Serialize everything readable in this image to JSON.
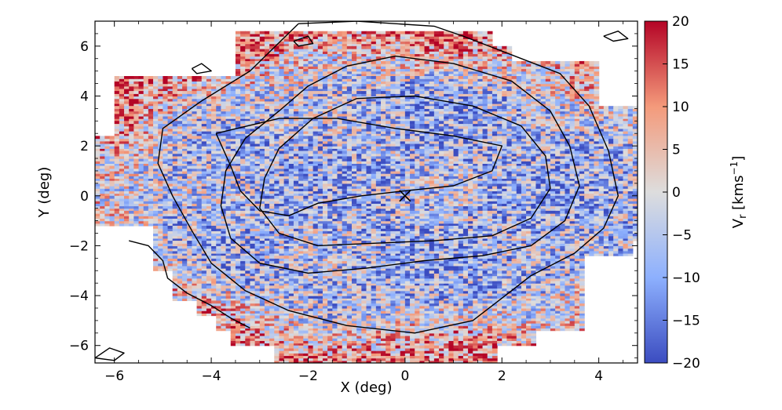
{
  "chart_data": {
    "type": "heatmap",
    "title": "",
    "xlabel": "X (deg)",
    "ylabel": "Y (deg)",
    "xlim": [
      -6.4,
      4.8
    ],
    "ylim": [
      -6.7,
      7.0
    ],
    "xticks": [
      -6,
      -4,
      -2,
      0,
      2,
      4
    ],
    "yticks": [
      -6,
      -4,
      -2,
      0,
      2,
      4,
      6
    ],
    "x_tick_labels": [
      "−6",
      "−4",
      "−2",
      "0",
      "2",
      "4"
    ],
    "y_tick_labels": [
      "−6",
      "−4",
      "−2",
      "0",
      "2",
      "4",
      "6"
    ],
    "colorbar": {
      "label_main": "V",
      "label_sub": "r",
      "label_unit_open": " [kms",
      "label_unit_exp": "−1",
      "label_unit_close": "]",
      "range": [
        -20,
        20
      ],
      "ticks": [
        -20,
        -15,
        -10,
        -5,
        0,
        5,
        10,
        15,
        20
      ],
      "tick_labels": [
        "−20",
        "−15",
        "−10",
        "−5",
        "0",
        "5",
        "10",
        "15",
        "20"
      ],
      "cmap": "coolwarm",
      "colors": [
        "#3b4cc0",
        "#8db0fe",
        "#dddddd",
        "#f49a7b",
        "#b40426"
      ]
    },
    "center_marker": {
      "x": 0,
      "y": 0,
      "symbol": "x"
    },
    "field_rows": [
      {
        "y": [
          6.0,
          6.6
        ],
        "x": [
          -3.5,
          1.8
        ]
      },
      {
        "y": [
          5.4,
          6.0
        ],
        "x": [
          -3.5,
          2.2
        ]
      },
      {
        "y": [
          4.8,
          5.4
        ],
        "x": [
          -3.5,
          4.0
        ]
      },
      {
        "y": [
          4.2,
          4.8
        ],
        "x": [
          -6.0,
          4.0
        ]
      },
      {
        "y": [
          3.6,
          4.2
        ],
        "x": [
          -6.0,
          4.0
        ]
      },
      {
        "y": [
          3.0,
          3.6
        ],
        "x": [
          -6.0,
          5.1
        ]
      },
      {
        "y": [
          2.4,
          3.0
        ],
        "x": [
          -6.0,
          5.2
        ]
      },
      {
        "y": [
          1.8,
          2.4
        ],
        "x": [
          -6.4,
          5.2
        ]
      },
      {
        "y": [
          1.2,
          1.8
        ],
        "x": [
          -6.4,
          5.2
        ]
      },
      {
        "y": [
          0.6,
          1.2
        ],
        "x": [
          -6.4,
          5.2
        ]
      },
      {
        "y": [
          0.0,
          0.6
        ],
        "x": [
          -6.4,
          5.2
        ]
      },
      {
        "y": [
          -0.6,
          0.0
        ],
        "x": [
          -6.4,
          5.2
        ]
      },
      {
        "y": [
          -1.2,
          -0.6
        ],
        "x": [
          -6.4,
          5.2
        ]
      },
      {
        "y": [
          -1.8,
          -1.2
        ],
        "x": [
          -5.2,
          5.2
        ]
      },
      {
        "y": [
          -2.4,
          -1.8
        ],
        "x": [
          -5.2,
          4.7
        ]
      },
      {
        "y": [
          -3.0,
          -2.4
        ],
        "x": [
          -5.2,
          3.7
        ]
      },
      {
        "y": [
          -3.6,
          -3.0
        ],
        "x": [
          -4.8,
          3.7
        ]
      },
      {
        "y": [
          -4.2,
          -3.6
        ],
        "x": [
          -4.8,
          3.7
        ]
      },
      {
        "y": [
          -4.8,
          -4.2
        ],
        "x": [
          -4.3,
          3.7
        ]
      },
      {
        "y": [
          -5.4,
          -4.8
        ],
        "x": [
          -3.9,
          3.7
        ]
      },
      {
        "y": [
          -6.0,
          -5.4
        ],
        "x": [
          -3.6,
          2.7
        ]
      },
      {
        "y": [
          -6.7,
          -6.0
        ],
        "x": [
          -2.7,
          1.9
        ]
      }
    ],
    "contours": [
      [
        [
          -2.2,
          6.9
        ],
        [
          -1.0,
          7.0
        ],
        [
          0.6,
          6.8
        ],
        [
          1.2,
          6.4
        ],
        [
          2.0,
          5.8
        ],
        [
          3.2,
          4.9
        ],
        [
          3.8,
          3.6
        ],
        [
          4.2,
          1.8
        ],
        [
          4.4,
          0.0
        ],
        [
          4.1,
          -1.3
        ],
        [
          3.5,
          -2.3
        ],
        [
          2.6,
          -3.2
        ],
        [
          2.0,
          -4.1
        ],
        [
          1.4,
          -5.0
        ],
        [
          0.2,
          -5.5
        ],
        [
          -1.2,
          -5.2
        ],
        [
          -2.4,
          -4.6
        ],
        [
          -3.3,
          -3.8
        ],
        [
          -4.0,
          -2.7
        ],
        [
          -4.4,
          -1.4
        ],
        [
          -4.8,
          0.0
        ],
        [
          -5.1,
          1.3
        ],
        [
          -5.0,
          2.7
        ],
        [
          -4.2,
          3.8
        ],
        [
          -3.2,
          5.0
        ],
        [
          -2.2,
          6.9
        ]
      ],
      [
        [
          -1.2,
          5.2
        ],
        [
          -0.2,
          5.6
        ],
        [
          1.0,
          5.3
        ],
        [
          2.2,
          4.6
        ],
        [
          3.0,
          3.4
        ],
        [
          3.4,
          2.0
        ],
        [
          3.6,
          0.4
        ],
        [
          3.3,
          -1.0
        ],
        [
          2.6,
          -2.0
        ],
        [
          1.6,
          -2.4
        ],
        [
          0.4,
          -2.6
        ],
        [
          -0.8,
          -2.9
        ],
        [
          -2.0,
          -3.1
        ],
        [
          -3.0,
          -2.7
        ],
        [
          -3.6,
          -1.7
        ],
        [
          -3.8,
          -0.4
        ],
        [
          -3.7,
          1.0
        ],
        [
          -3.3,
          2.3
        ],
        [
          -2.6,
          3.4
        ],
        [
          -2.0,
          4.4
        ],
        [
          -1.2,
          5.2
        ]
      ],
      [
        [
          -1.0,
          3.9
        ],
        [
          0.2,
          4.0
        ],
        [
          1.4,
          3.6
        ],
        [
          2.4,
          2.8
        ],
        [
          2.9,
          1.6
        ],
        [
          3.0,
          0.3
        ],
        [
          2.6,
          -0.9
        ],
        [
          1.8,
          -1.6
        ],
        [
          0.6,
          -1.8
        ],
        [
          -0.6,
          -1.9
        ],
        [
          -1.8,
          -2.0
        ],
        [
          -2.6,
          -1.5
        ],
        [
          -3.0,
          -0.5
        ],
        [
          -2.9,
          0.7
        ],
        [
          -2.6,
          1.9
        ],
        [
          -1.9,
          3.1
        ],
        [
          -1.0,
          3.9
        ]
      ],
      [
        [
          -3.9,
          2.5
        ],
        [
          -2.6,
          3.1
        ],
        [
          -1.4,
          3.1
        ],
        [
          -0.2,
          2.7
        ],
        [
          1.0,
          2.4
        ],
        [
          2.0,
          2.0
        ],
        [
          1.8,
          1.0
        ],
        [
          1.0,
          0.4
        ],
        [
          0.0,
          0.2
        ],
        [
          -0.9,
          0.0
        ],
        [
          -1.8,
          -0.3
        ],
        [
          -2.4,
          -0.8
        ],
        [
          -3.0,
          -0.6
        ],
        [
          -3.4,
          0.2
        ],
        [
          -3.6,
          1.2
        ],
        [
          -3.9,
          2.5
        ]
      ],
      [
        [
          -6.4,
          -6.5
        ],
        [
          -6.0,
          -6.6
        ],
        [
          -5.8,
          -6.3
        ],
        [
          -6.1,
          -6.1
        ],
        [
          -6.4,
          -6.5
        ]
      ],
      [
        [
          4.1,
          6.4
        ],
        [
          4.4,
          6.6
        ],
        [
          4.6,
          6.3
        ],
        [
          4.3,
          6.2
        ],
        [
          4.1,
          6.4
        ]
      ],
      [
        [
          -5.7,
          -1.8
        ],
        [
          -5.3,
          -2.0
        ],
        [
          -5.0,
          -2.6
        ],
        [
          -4.9,
          -3.3
        ],
        [
          -4.5,
          -3.9
        ],
        [
          -4.0,
          -4.4
        ],
        [
          -3.6,
          -4.9
        ],
        [
          -3.2,
          -5.3
        ]
      ],
      [
        [
          -4.4,
          5.1
        ],
        [
          -4.2,
          5.3
        ],
        [
          -4.0,
          5.0
        ],
        [
          -4.3,
          4.9
        ],
        [
          -4.4,
          5.1
        ]
      ],
      [
        [
          -2.3,
          6.2
        ],
        [
          -2.0,
          6.4
        ],
        [
          -1.9,
          6.1
        ],
        [
          -2.2,
          6.0
        ],
        [
          -2.3,
          6.2
        ]
      ]
    ]
  }
}
